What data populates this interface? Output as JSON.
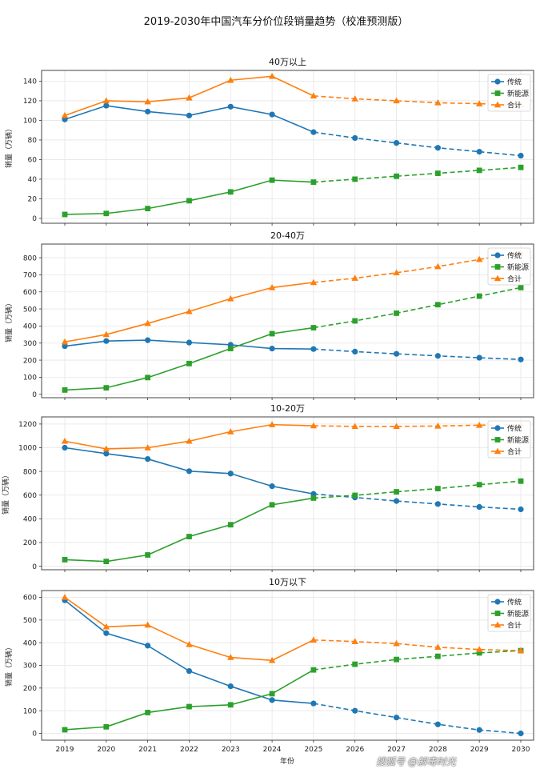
{
  "chart_data": {
    "type": "line",
    "title": "2019-2030年中国汽车分价位段销量趋势（校准预测版）",
    "xlabel": "年份",
    "x": [
      "2019",
      "2020",
      "2021",
      "2022",
      "2023",
      "2024",
      "2025",
      "2026",
      "2027",
      "2028",
      "2029",
      "2030"
    ],
    "forecast_from": "2025",
    "grid": true,
    "legend_position": "upper-right",
    "series_styles": [
      {
        "name": "传统",
        "color": "#1f77b4",
        "marker": "circle"
      },
      {
        "name": "新能源",
        "color": "#2ca02c",
        "marker": "square"
      },
      {
        "name": "合计",
        "color": "#ff7f0e",
        "marker": "triangle"
      }
    ],
    "panels": [
      {
        "title": "40万以上",
        "ylabel": "销量（万辆）",
        "ylim": [
          -5,
          151
        ],
        "yticks": [
          0,
          20,
          40,
          60,
          80,
          100,
          120,
          140
        ],
        "series": [
          {
            "name": "传统",
            "values": [
              101,
              115,
              109,
              105,
              114,
              106,
              88,
              82,
              77,
              72,
              68,
              64
            ]
          },
          {
            "name": "新能源",
            "values": [
              4,
              5,
              10,
              18,
              27,
              39,
              37,
              40,
              43,
              46,
              49,
              52
            ]
          },
          {
            "name": "合计",
            "values": [
              105,
              120,
              119,
              123,
              141,
              145,
              125,
              122,
              120,
              118,
              117,
              116
            ]
          }
        ]
      },
      {
        "title": "20-40万",
        "ylabel": "销量（万辆）",
        "ylim": [
          -20,
          880
        ],
        "yticks": [
          0,
          100,
          200,
          300,
          400,
          500,
          600,
          700,
          800
        ],
        "series": [
          {
            "name": "传统",
            "values": [
              282,
              312,
              317,
              303,
              290,
              268,
              265,
              250,
              237,
              225,
              214,
              204
            ]
          },
          {
            "name": "新能源",
            "values": [
              25,
              38,
              98,
              180,
              268,
              355,
              390,
              430,
              475,
              525,
              575,
              625
            ]
          },
          {
            "name": "合计",
            "values": [
              307,
              350,
              415,
              485,
              560,
              625,
              655,
              680,
              712,
              748,
              790,
              830
            ]
          }
        ]
      },
      {
        "title": "10-20万",
        "ylabel": "销量（万辆）",
        "ylim": [
          -30,
          1260
        ],
        "yticks": [
          0,
          200,
          400,
          600,
          800,
          1000,
          1200
        ],
        "series": [
          {
            "name": "传统",
            "values": [
              1000,
              950,
              905,
              802,
              782,
              675,
              610,
              580,
              550,
              525,
              500,
              480
            ]
          },
          {
            "name": "新能源",
            "values": [
              55,
              40,
              95,
              250,
              350,
              518,
              575,
              598,
              628,
              655,
              688,
              718
            ]
          },
          {
            "name": "合计",
            "values": [
              1055,
              990,
              1000,
              1055,
              1135,
              1195,
              1185,
              1180,
              1180,
              1183,
              1190,
              1195
            ]
          }
        ]
      },
      {
        "title": "10万以下",
        "ylabel": "销量（万辆）",
        "ylim": [
          -30,
          630
        ],
        "yticks": [
          0,
          100,
          200,
          300,
          400,
          500,
          600
        ],
        "series": [
          {
            "name": "传统",
            "values": [
              587,
              442,
              387,
              275,
              208,
              147,
              132,
              100,
              70,
              40,
              15,
              0
            ]
          },
          {
            "name": "新能源",
            "values": [
              16,
              29,
              92,
              118,
              126,
              175,
              280,
              305,
              326,
              340,
              355,
              365
            ]
          },
          {
            "name": "合计",
            "values": [
              600,
              470,
              478,
              392,
              335,
              322,
              412,
              405,
              396,
              380,
              370,
              365
            ]
          }
        ]
      }
    ]
  },
  "watermark": "搜狐号 @解毒时光"
}
